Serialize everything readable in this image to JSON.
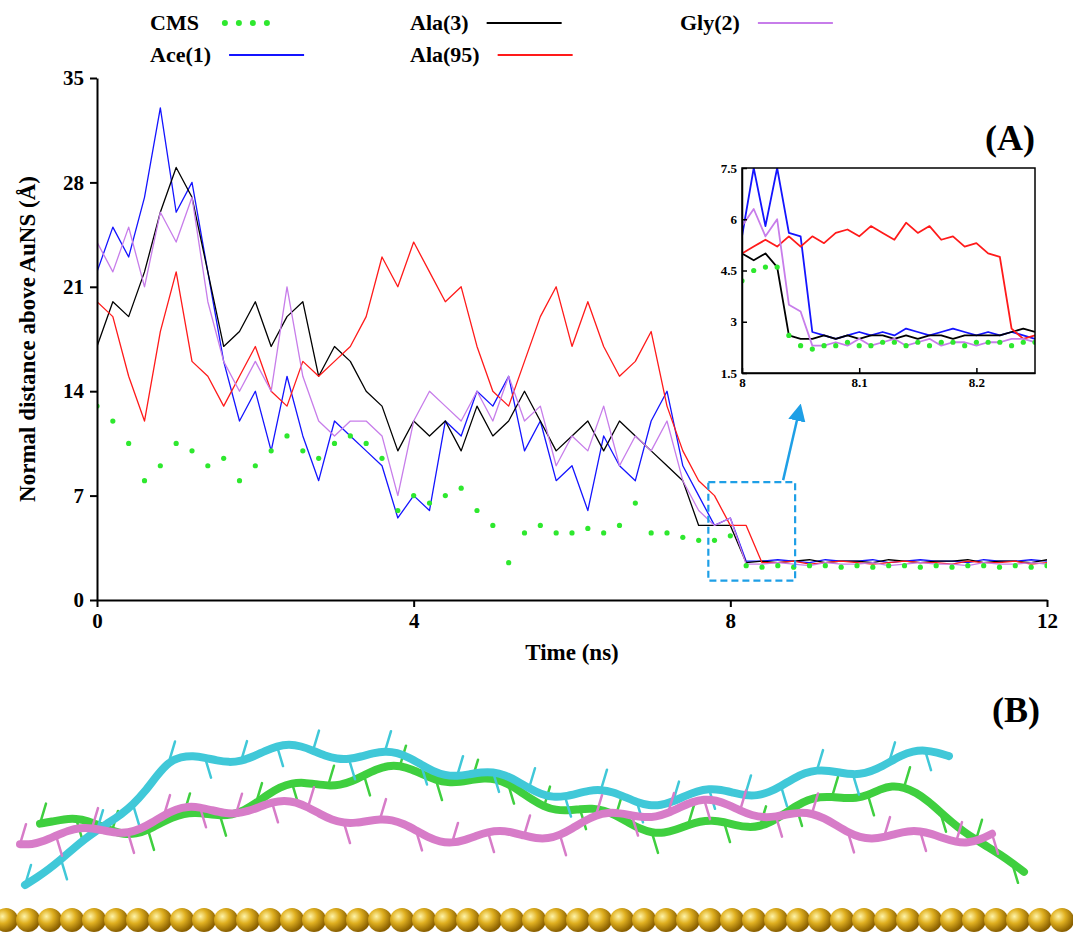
{
  "chart_data": [
    {
      "type": "line",
      "x_label": "Time (ns)",
      "y_label": "Normal distance above AuNS (Å)",
      "annotations": [
        "(A)"
      ],
      "legend": "top",
      "xlim": [
        0,
        12
      ],
      "xticks": [
        0,
        4,
        8,
        12
      ],
      "ylim": [
        0,
        35
      ],
      "yticks": [
        0,
        7,
        14,
        21,
        28,
        35
      ],
      "x": [
        0,
        0.2,
        0.4,
        0.6,
        0.8,
        1,
        1.2,
        1.4,
        1.6,
        1.8,
        2,
        2.2,
        2.4,
        2.6,
        2.8,
        3,
        3.2,
        3.4,
        3.6,
        3.8,
        4,
        4.2,
        4.4,
        4.6,
        4.8,
        5,
        5.2,
        5.4,
        5.6,
        5.8,
        6,
        6.2,
        6.4,
        6.6,
        6.8,
        7,
        7.2,
        7.4,
        7.6,
        7.8,
        8,
        8.2,
        8.4,
        8.6,
        8.8,
        9,
        9.2,
        9.4,
        9.6,
        9.8,
        10,
        10.2,
        10.4,
        10.6,
        10.8,
        11,
        11.2,
        11.4,
        11.6,
        11.8,
        12
      ],
      "series": [
        {
          "name": "CMS",
          "color": "#2ee82e",
          "type": "scatter",
          "marker": "circle",
          "values": [
            13,
            12,
            10.5,
            8,
            9,
            10.5,
            10,
            9,
            9.5,
            8,
            9,
            10,
            11,
            10,
            9.5,
            10.5,
            11,
            10.5,
            9.5,
            6,
            7,
            6.5,
            7,
            7.5,
            6,
            5,
            2.5,
            4.5,
            5,
            4.5,
            4.5,
            4.8,
            4.5,
            5,
            6.5,
            4.5,
            4.5,
            4.2,
            4,
            4,
            4.3,
            2.3,
            2.2,
            2.3,
            2.2,
            2.3,
            2.3,
            2.2,
            2.3,
            2.2,
            2.3,
            2.3,
            2.2,
            2.3,
            2.2,
            2.3,
            2.3,
            2.2,
            2.3,
            2.2,
            2.3
          ]
        },
        {
          "name": "Ace(1)",
          "color": "#1414ff",
          "type": "line",
          "values": [
            22,
            25,
            23,
            27,
            33,
            26,
            28,
            22,
            16,
            12,
            14,
            10,
            15,
            11,
            8,
            12,
            11,
            10,
            9,
            5.5,
            7,
            6,
            12,
            11,
            14,
            13,
            15,
            10,
            12,
            8,
            9,
            6,
            11,
            9,
            8,
            12,
            14,
            9,
            7,
            5,
            5.5,
            2.6,
            2.6,
            2.7,
            2.6,
            2.5,
            2.7,
            2.6,
            2.6,
            2.7,
            2.5,
            2.6,
            2.7,
            2.6,
            2.6,
            2.5,
            2.7,
            2.6,
            2.6,
            2.7,
            2.6
          ]
        },
        {
          "name": "Ala(3)",
          "color": "#000000",
          "type": "line",
          "values": [
            17,
            20,
            19,
            22,
            26,
            29,
            27,
            22,
            17,
            18,
            20,
            17,
            19,
            20,
            15,
            17,
            16,
            14,
            13,
            10,
            12,
            11,
            12,
            10,
            13,
            11,
            12,
            14,
            12,
            10,
            11,
            12,
            10,
            12,
            11,
            10,
            9,
            8,
            5,
            5,
            5,
            2.5,
            2.6,
            2.5,
            2.6,
            2.7,
            2.5,
            2.6,
            2.6,
            2.5,
            2.7,
            2.6,
            2.5,
            2.6,
            2.6,
            2.7,
            2.5,
            2.6,
            2.6,
            2.5,
            2.7
          ]
        },
        {
          "name": "Ala(95)",
          "color": "#ff1a1a",
          "type": "line",
          "values": [
            20,
            19,
            15,
            12,
            18,
            22,
            16,
            15,
            13,
            15,
            17,
            14,
            13,
            16,
            15,
            16,
            17,
            19,
            23,
            21,
            24,
            22,
            20,
            21,
            17,
            14,
            13,
            16,
            19,
            21,
            17,
            20,
            17,
            15,
            16,
            18,
            13,
            10,
            8,
            7,
            5,
            5,
            2.5,
            2.5,
            2.6,
            2.4,
            2.5,
            2.6,
            2.5,
            2.4,
            2.5,
            2.6,
            2.5,
            2.5,
            2.4,
            2.6,
            2.5,
            2.5,
            2.6,
            2.4,
            2.5
          ]
        },
        {
          "name": "Gly(2)",
          "color": "#c77dea",
          "type": "line",
          "values": [
            24,
            22,
            25,
            21,
            26,
            24,
            27,
            20,
            16,
            14,
            16,
            14,
            21,
            15,
            12,
            11,
            12,
            12,
            11,
            7,
            12,
            14,
            13,
            12,
            14,
            12,
            15,
            12,
            13,
            9,
            11,
            10,
            13,
            9,
            11,
            10,
            12,
            8,
            6,
            5,
            5.5,
            2.4,
            2.4,
            2.5,
            2.4,
            2.3,
            2.5,
            2.4,
            2.4,
            2.5,
            2.3,
            2.4,
            2.5,
            2.4,
            2.4,
            2.3,
            2.5,
            2.4,
            2.4,
            2.5,
            2.4
          ]
        }
      ]
    },
    {
      "type": "line",
      "xlim": [
        8,
        8.25
      ],
      "xticks": [
        8,
        8.1,
        8.2
      ],
      "ylim": [
        1.5,
        7.5
      ],
      "yticks": [
        1.5,
        3,
        4.5,
        6,
        7.5
      ],
      "x": [
        8,
        8.01,
        8.02,
        8.03,
        8.04,
        8.05,
        8.06,
        8.07,
        8.08,
        8.09,
        8.1,
        8.11,
        8.12,
        8.13,
        8.14,
        8.15,
        8.16,
        8.17,
        8.18,
        8.19,
        8.2,
        8.21,
        8.22,
        8.23,
        8.24,
        8.25
      ],
      "series": [
        {
          "color": "#2ee82e",
          "type": "scatter",
          "marker": "circle",
          "values": [
            4.2,
            4.5,
            4.6,
            4.6,
            2.6,
            2.3,
            2.2,
            2.3,
            2.3,
            2.4,
            2.3,
            2.3,
            2.4,
            2.4,
            2.3,
            2.4,
            2.3,
            2.4,
            2.4,
            2.3,
            2.4,
            2.4,
            2.4,
            2.3,
            2.4,
            2.4
          ]
        },
        {
          "color": "#1414ff",
          "type": "line",
          "values": [
            5.5,
            7.5,
            5.8,
            7.5,
            5.6,
            5.5,
            2.7,
            2.6,
            2.5,
            2.6,
            2.7,
            2.6,
            2.7,
            2.6,
            2.8,
            2.7,
            2.6,
            2.7,
            2.8,
            2.7,
            2.6,
            2.7,
            2.6,
            2.7,
            2.6,
            2.5
          ]
        },
        {
          "color": "#000000",
          "type": "line",
          "values": [
            5,
            4.8,
            5,
            4.6,
            2.6,
            2.5,
            2.5,
            2.6,
            2.5,
            2.6,
            2.5,
            2.6,
            2.6,
            2.5,
            2.6,
            2.5,
            2.6,
            2.6,
            2.5,
            2.6,
            2.6,
            2.6,
            2.6,
            2.7,
            2.8,
            2.7
          ]
        },
        {
          "color": "#ff1a1a",
          "type": "line",
          "values": [
            5,
            5.2,
            5.4,
            5.2,
            5.5,
            5.2,
            5.5,
            5.3,
            5.6,
            5.7,
            5.5,
            5.8,
            5.6,
            5.4,
            5.9,
            5.6,
            5.8,
            5.4,
            5.5,
            5.2,
            5.3,
            5,
            4.9,
            2.8,
            2.5,
            2.6
          ]
        },
        {
          "color": "#c77dea",
          "type": "line",
          "values": [
            5.8,
            6.3,
            5.5,
            6,
            3.5,
            3.3,
            2.3,
            2.3,
            2.4,
            2.3,
            2.5,
            2.3,
            2.4,
            2.5,
            2.3,
            2.4,
            2.5,
            2.3,
            2.4,
            2.4,
            2.3,
            2.4,
            2.4,
            2.5,
            2.5,
            2.4
          ]
        }
      ]
    }
  ],
  "panel_b": {
    "label": "(B)"
  }
}
